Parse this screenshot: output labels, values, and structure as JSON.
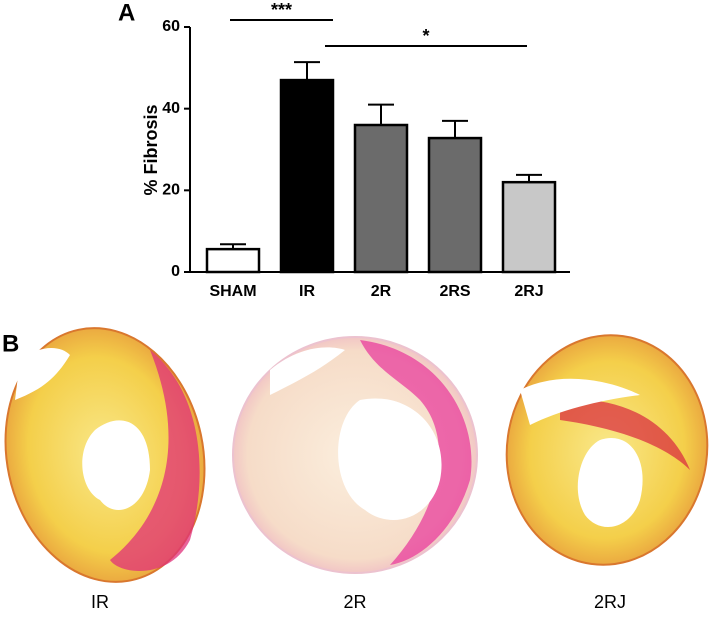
{
  "chart_data": {
    "type": "bar",
    "ylabel": "% Fibrosis",
    "categories": [
      "SHAM",
      "IR",
      "2R",
      "2RS",
      "2RJ"
    ],
    "values": [
      5.6,
      47,
      36,
      32.8,
      22
    ],
    "errors": [
      1.2,
      4.4,
      5,
      4.2,
      1.8
    ],
    "colors": [
      "#ffffff",
      "#000000",
      "#6b6b6b",
      "#6b6b6b",
      "#c8c8c8"
    ],
    "ylim": [
      0,
      60
    ],
    "yticks": [
      0,
      20,
      40,
      60
    ],
    "grid": false,
    "annotations": [
      "***",
      "*"
    ]
  },
  "panel_labels": [
    "A",
    "B"
  ],
  "image_labels": [
    "IR",
    "2R",
    "2RJ"
  ]
}
